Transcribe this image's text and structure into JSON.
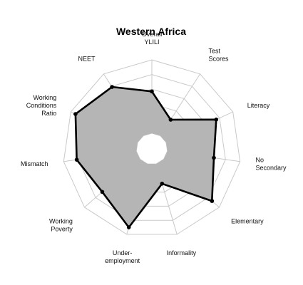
{
  "chart_data": {
    "type": "radar",
    "title": "Western Africa",
    "axes": [
      [
        "Overall",
        "YLILI"
      ],
      [
        "Test",
        "Scores"
      ],
      [
        "Literacy"
      ],
      [
        "No",
        "Secondary"
      ],
      [
        "Elementary"
      ],
      [
        "Informality"
      ],
      [
        "Under-",
        "employment"
      ],
      [
        "Working",
        "Poverty"
      ],
      [
        "Mismatch"
      ],
      [
        "Working",
        "Conditions",
        "Ratio"
      ],
      [
        "NEET"
      ]
    ],
    "range": [
      0,
      1
    ],
    "grid_levels": 5,
    "grid": true,
    "values": [
      0.57,
      0.26,
      0.75,
      0.64,
      0.87,
      0.28,
      0.9,
      0.68,
      0.82,
      0.93,
      0.79
    ],
    "colors": {
      "fill": "#b5b5b5",
      "line": "#000000",
      "grid": "#c9c9c9"
    }
  }
}
